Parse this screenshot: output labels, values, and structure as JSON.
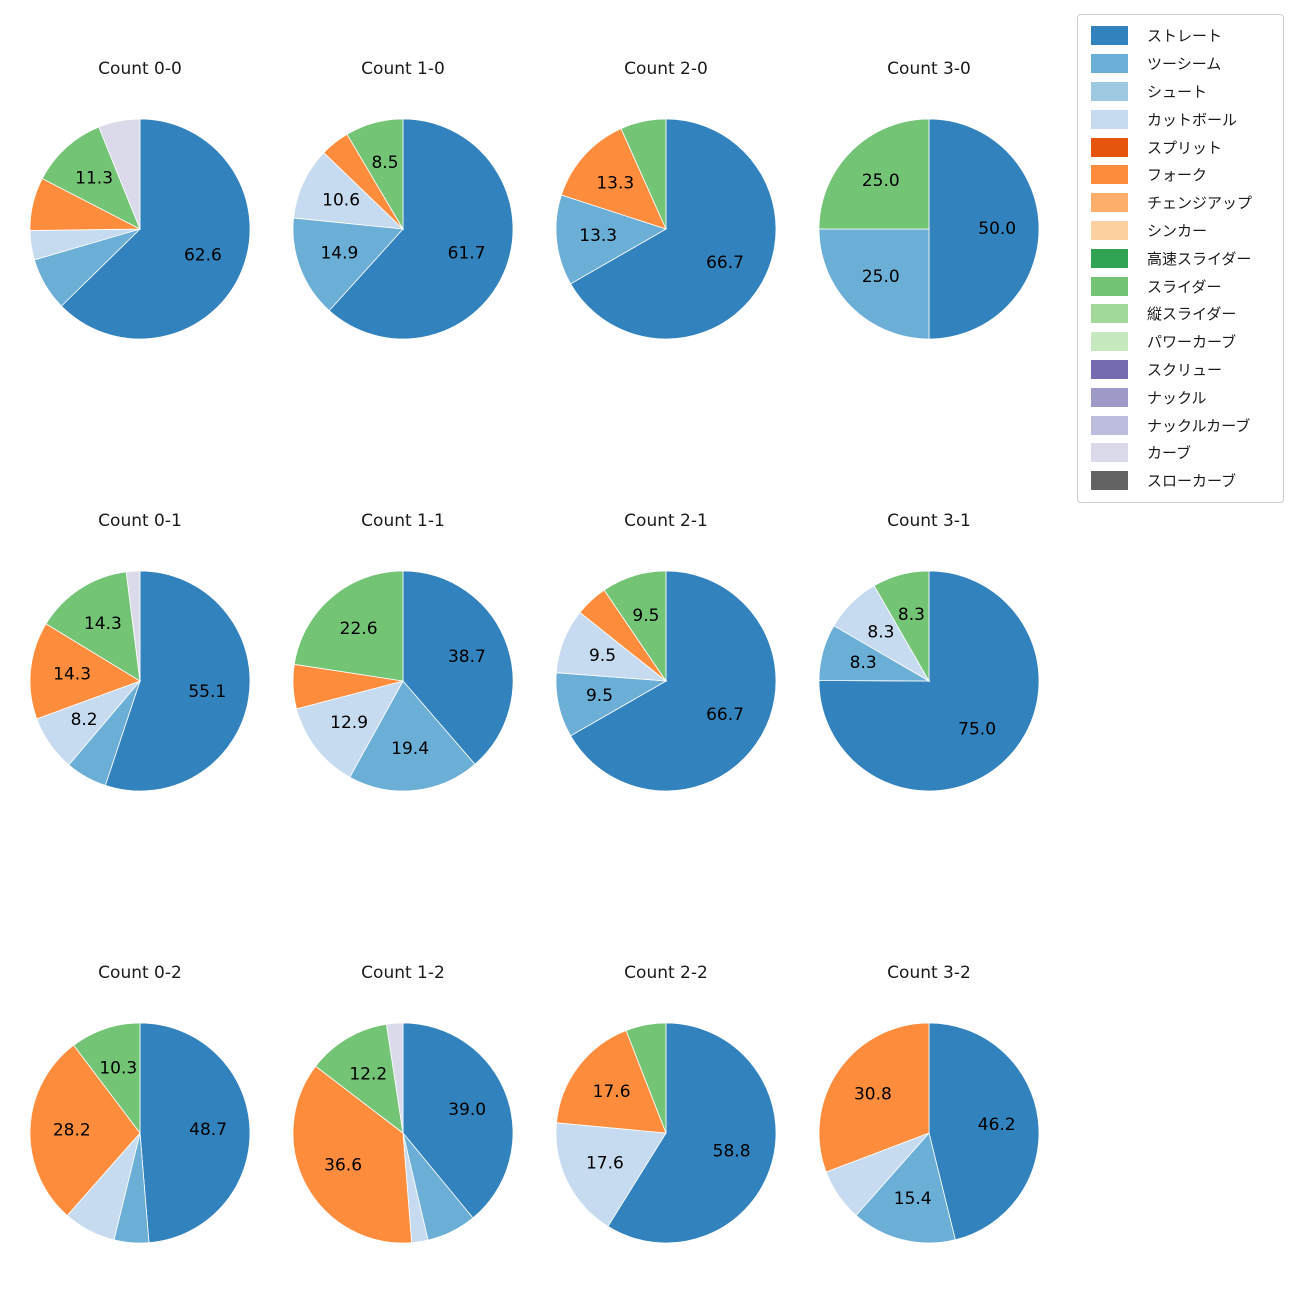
{
  "figure": {
    "background": "#ffffff",
    "grid": {
      "rows": 3,
      "cols": 4
    },
    "text_color": "#1a1a1a"
  },
  "legend": {
    "position": "top-right",
    "items": [
      {
        "label": "ストレート",
        "color": "#3182bd"
      },
      {
        "label": "ツーシーム",
        "color": "#6baed6"
      },
      {
        "label": "シュート",
        "color": "#9ecae1"
      },
      {
        "label": "カットボール",
        "color": "#c6dbef"
      },
      {
        "label": "スプリット",
        "color": "#e6550d"
      },
      {
        "label": "フォーク",
        "color": "#fd8d3c"
      },
      {
        "label": "チェンジアップ",
        "color": "#fdae6b"
      },
      {
        "label": "シンカー",
        "color": "#fdd0a2"
      },
      {
        "label": "高速スライダー",
        "color": "#31a354"
      },
      {
        "label": "スライダー",
        "color": "#74c476"
      },
      {
        "label": "縦スライダー",
        "color": "#a1d99b"
      },
      {
        "label": "パワーカーブ",
        "color": "#c7e9c0"
      },
      {
        "label": "スクリュー",
        "color": "#756bb1"
      },
      {
        "label": "ナックル",
        "color": "#9e9ac8"
      },
      {
        "label": "ナックルカーブ",
        "color": "#bcbddc"
      },
      {
        "label": "カーブ",
        "color": "#dadaeb"
      },
      {
        "label": "スローカーブ",
        "color": "#636363"
      }
    ]
  },
  "chart_data": [
    {
      "type": "pie",
      "title": "Count 0-0",
      "start_angle_deg": 0,
      "direction": "clockwise",
      "slices": [
        {
          "label": "ストレート",
          "value": 62.6,
          "pct_shown": "62.6"
        },
        {
          "label": "ツーシーム",
          "value": 7.8,
          "pct_shown": null
        },
        {
          "label": "カットボール",
          "value": 4.3,
          "pct_shown": null
        },
        {
          "label": "フォーク",
          "value": 7.8,
          "pct_shown": null
        },
        {
          "label": "スライダー",
          "value": 11.3,
          "pct_shown": "11.3"
        },
        {
          "label": "カーブ",
          "value": 6.1,
          "pct_shown": null
        }
      ]
    },
    {
      "type": "pie",
      "title": "Count 1-0",
      "start_angle_deg": 0,
      "direction": "clockwise",
      "slices": [
        {
          "label": "ストレート",
          "value": 61.7,
          "pct_shown": "61.7"
        },
        {
          "label": "ツーシーム",
          "value": 14.9,
          "pct_shown": "14.9"
        },
        {
          "label": "カットボール",
          "value": 10.6,
          "pct_shown": "10.6"
        },
        {
          "label": "フォーク",
          "value": 4.3,
          "pct_shown": null
        },
        {
          "label": "スライダー",
          "value": 8.5,
          "pct_shown": "8.5"
        }
      ]
    },
    {
      "type": "pie",
      "title": "Count 2-0",
      "start_angle_deg": 0,
      "direction": "clockwise",
      "slices": [
        {
          "label": "ストレート",
          "value": 66.7,
          "pct_shown": "66.7"
        },
        {
          "label": "ツーシーム",
          "value": 13.3,
          "pct_shown": "13.3"
        },
        {
          "label": "フォーク",
          "value": 13.3,
          "pct_shown": "13.3"
        },
        {
          "label": "スライダー",
          "value": 6.7,
          "pct_shown": null
        }
      ]
    },
    {
      "type": "pie",
      "title": "Count 3-0",
      "start_angle_deg": 0,
      "direction": "clockwise",
      "slices": [
        {
          "label": "ストレート",
          "value": 50.0,
          "pct_shown": "50.0"
        },
        {
          "label": "ツーシーム",
          "value": 25.0,
          "pct_shown": "25.0"
        },
        {
          "label": "スライダー",
          "value": 25.0,
          "pct_shown": "25.0"
        }
      ]
    },
    {
      "type": "pie",
      "title": "Count 0-1",
      "start_angle_deg": 0,
      "direction": "clockwise",
      "slices": [
        {
          "label": "ストレート",
          "value": 55.1,
          "pct_shown": "55.1"
        },
        {
          "label": "ツーシーム",
          "value": 6.1,
          "pct_shown": null
        },
        {
          "label": "カットボール",
          "value": 8.2,
          "pct_shown": "8.2"
        },
        {
          "label": "フォーク",
          "value": 14.3,
          "pct_shown": "14.3"
        },
        {
          "label": "スライダー",
          "value": 14.3,
          "pct_shown": "14.3"
        },
        {
          "label": "カーブ",
          "value": 2.0,
          "pct_shown": null
        }
      ]
    },
    {
      "type": "pie",
      "title": "Count 1-1",
      "start_angle_deg": 0,
      "direction": "clockwise",
      "slices": [
        {
          "label": "ストレート",
          "value": 38.7,
          "pct_shown": "38.7"
        },
        {
          "label": "ツーシーム",
          "value": 19.4,
          "pct_shown": "19.4"
        },
        {
          "label": "カットボール",
          "value": 12.9,
          "pct_shown": "12.9"
        },
        {
          "label": "フォーク",
          "value": 6.5,
          "pct_shown": null
        },
        {
          "label": "スライダー",
          "value": 22.6,
          "pct_shown": "22.6"
        }
      ]
    },
    {
      "type": "pie",
      "title": "Count 2-1",
      "start_angle_deg": 0,
      "direction": "clockwise",
      "slices": [
        {
          "label": "ストレート",
          "value": 66.7,
          "pct_shown": "66.7"
        },
        {
          "label": "ツーシーム",
          "value": 9.5,
          "pct_shown": "9.5"
        },
        {
          "label": "カットボール",
          "value": 9.5,
          "pct_shown": "9.5"
        },
        {
          "label": "フォーク",
          "value": 4.8,
          "pct_shown": null
        },
        {
          "label": "スライダー",
          "value": 9.5,
          "pct_shown": "9.5"
        }
      ]
    },
    {
      "type": "pie",
      "title": "Count 3-1",
      "start_angle_deg": 0,
      "direction": "clockwise",
      "slices": [
        {
          "label": "ストレート",
          "value": 75.0,
          "pct_shown": "75.0"
        },
        {
          "label": "ツーシーム",
          "value": 8.3,
          "pct_shown": "8.3"
        },
        {
          "label": "カットボール",
          "value": 8.3,
          "pct_shown": "8.3"
        },
        {
          "label": "スライダー",
          "value": 8.3,
          "pct_shown": "8.3"
        }
      ]
    },
    {
      "type": "pie",
      "title": "Count 0-2",
      "start_angle_deg": 0,
      "direction": "clockwise",
      "slices": [
        {
          "label": "ストレート",
          "value": 48.7,
          "pct_shown": "48.7"
        },
        {
          "label": "ツーシーム",
          "value": 5.1,
          "pct_shown": null
        },
        {
          "label": "カットボール",
          "value": 7.7,
          "pct_shown": null
        },
        {
          "label": "フォーク",
          "value": 28.2,
          "pct_shown": "28.2"
        },
        {
          "label": "スライダー",
          "value": 10.3,
          "pct_shown": "10.3"
        }
      ]
    },
    {
      "type": "pie",
      "title": "Count 1-2",
      "start_angle_deg": 0,
      "direction": "clockwise",
      "slices": [
        {
          "label": "ストレート",
          "value": 39.0,
          "pct_shown": "39.0"
        },
        {
          "label": "ツーシーム",
          "value": 7.3,
          "pct_shown": null
        },
        {
          "label": "カットボール",
          "value": 2.4,
          "pct_shown": null
        },
        {
          "label": "フォーク",
          "value": 36.6,
          "pct_shown": "36.6"
        },
        {
          "label": "スライダー",
          "value": 12.2,
          "pct_shown": "12.2"
        },
        {
          "label": "カーブ",
          "value": 2.4,
          "pct_shown": null
        }
      ]
    },
    {
      "type": "pie",
      "title": "Count 2-2",
      "start_angle_deg": 0,
      "direction": "clockwise",
      "slices": [
        {
          "label": "ストレート",
          "value": 58.8,
          "pct_shown": "58.8"
        },
        {
          "label": "カットボール",
          "value": 17.6,
          "pct_shown": "17.6"
        },
        {
          "label": "フォーク",
          "value": 17.6,
          "pct_shown": "17.6"
        },
        {
          "label": "スライダー",
          "value": 5.9,
          "pct_shown": null
        }
      ]
    },
    {
      "type": "pie",
      "title": "Count 3-2",
      "start_angle_deg": 0,
      "direction": "clockwise",
      "slices": [
        {
          "label": "ストレート",
          "value": 46.2,
          "pct_shown": "46.2"
        },
        {
          "label": "ツーシーム",
          "value": 15.4,
          "pct_shown": "15.4"
        },
        {
          "label": "カットボール",
          "value": 7.7,
          "pct_shown": null
        },
        {
          "label": "フォーク",
          "value": 30.8,
          "pct_shown": "30.8"
        }
      ]
    }
  ]
}
